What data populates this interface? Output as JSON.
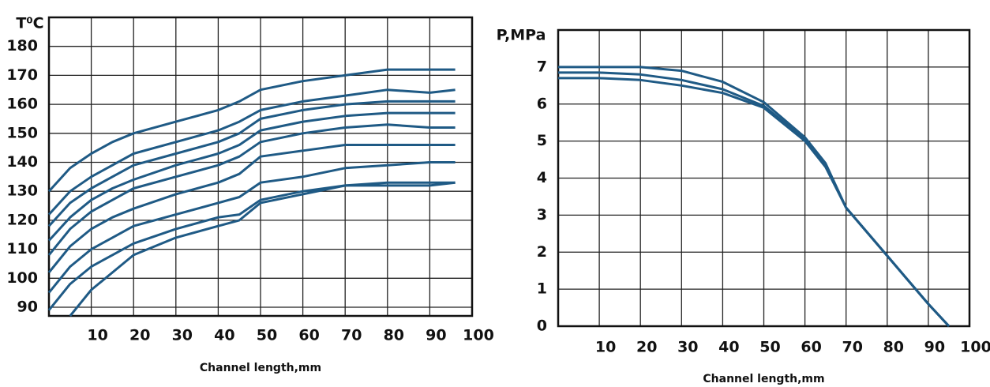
{
  "chart_data": [
    {
      "type": "line",
      "y_label": "T⁰C",
      "x_label": "Channel length,mm",
      "x": [
        0,
        5,
        10,
        15,
        20,
        30,
        40,
        45,
        50,
        60,
        70,
        80,
        90,
        96
      ],
      "series": [
        {
          "color": "#1f5a85",
          "values": [
            130,
            138,
            143,
            147,
            150,
            154,
            158,
            161,
            165,
            168,
            170,
            172,
            172,
            172
          ]
        },
        {
          "color": "#1f5a85",
          "values": [
            122,
            130,
            135,
            139,
            143,
            147,
            151,
            154,
            158,
            161,
            163,
            165,
            164,
            165
          ]
        },
        {
          "color": "#1f5a85",
          "values": [
            118,
            126,
            131,
            135,
            139,
            143,
            147,
            150,
            155,
            158,
            160,
            161,
            161,
            161
          ]
        },
        {
          "color": "#1f5a85",
          "values": [
            113,
            121,
            127,
            131,
            134,
            139,
            143,
            146,
            151,
            154,
            156,
            157,
            157,
            157
          ]
        },
        {
          "color": "#1f5a85",
          "values": [
            108,
            117,
            123,
            127,
            131,
            135,
            139,
            142,
            147,
            150,
            152,
            153,
            152,
            152
          ]
        },
        {
          "color": "#1f5a85",
          "values": [
            102,
            111,
            117,
            121,
            124,
            129,
            133,
            136,
            142,
            144,
            146,
            146,
            146,
            146
          ]
        },
        {
          "color": "#1f5a85",
          "values": [
            95,
            104,
            110,
            114,
            118,
            122,
            126,
            128,
            133,
            135,
            138,
            139,
            140,
            140
          ]
        },
        {
          "color": "#1f5a85",
          "values": [
            89,
            98,
            104,
            108,
            112,
            117,
            121,
            122,
            127,
            130,
            132,
            133,
            133,
            133
          ]
        },
        {
          "color": "#1f5a85",
          "values": [
            null,
            87,
            96,
            102,
            108,
            114,
            118,
            120,
            126,
            129,
            132,
            132,
            132,
            133
          ]
        }
      ],
      "xlim": [
        0,
        100
      ],
      "ylim": [
        87,
        190
      ],
      "xticks": [
        10,
        20,
        30,
        40,
        50,
        60,
        70,
        80,
        90,
        100
      ],
      "yticks": [
        90,
        100,
        110,
        120,
        130,
        140,
        150,
        160,
        170,
        180
      ],
      "grid": true
    },
    {
      "type": "line",
      "y_label": "P,MPa",
      "x_label": "Channel length,mm",
      "x": [
        0,
        10,
        20,
        30,
        40,
        50,
        60,
        65,
        70,
        80,
        90,
        95
      ],
      "series": [
        {
          "color": "#1f5a85",
          "values": [
            7,
            7,
            7,
            6.9,
            6.6,
            6.05,
            5.1,
            4.4,
            3.2,
            1.9,
            0.6,
            0
          ]
        },
        {
          "color": "#1f5a85",
          "values": [
            6.85,
            6.85,
            6.8,
            6.65,
            6.4,
            5.95,
            5.05,
            4.35,
            3.2,
            1.9,
            0.6,
            0
          ]
        },
        {
          "color": "#1f5a85",
          "values": [
            6.7,
            6.7,
            6.65,
            6.5,
            6.3,
            5.9,
            5,
            4.3,
            3.2,
            1.9,
            0.6,
            0
          ]
        }
      ],
      "xlim": [
        0,
        100
      ],
      "ylim": [
        0,
        8
      ],
      "xticks": [
        10,
        20,
        30,
        40,
        50,
        60,
        70,
        80,
        90,
        100
      ],
      "yticks": [
        0,
        1,
        2,
        3,
        4,
        5,
        6,
        7
      ],
      "grid": true
    }
  ]
}
